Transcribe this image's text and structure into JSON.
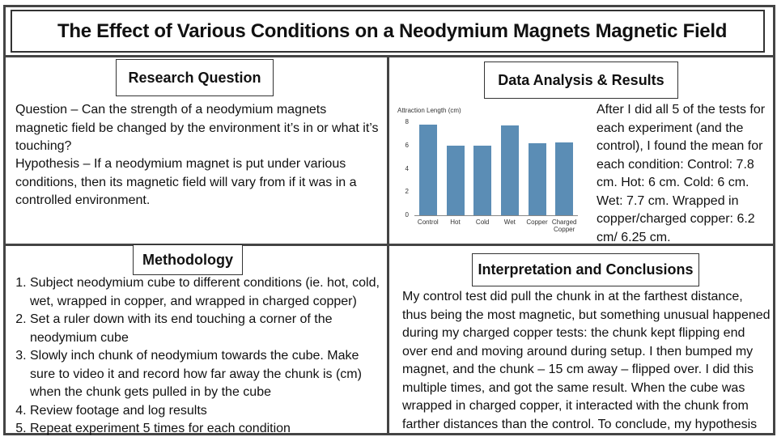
{
  "header": {
    "title": "The Effect of Various Conditions on a Neodymium Magnets Magnetic Field"
  },
  "research": {
    "heading": "Research Question",
    "question": "Question – Can the strength of a neodymium magnets magnetic field be changed by the environment it’s in or what it’s touching?",
    "hypothesis": "Hypothesis – If a neodymium magnet is put under various conditions, then its magnetic field will vary from if it was in a controlled environment."
  },
  "results": {
    "heading": "Data Analysis & Results",
    "text": "After I did all 5 of the tests for each experiment (and the control), I found the mean for each condition: Control: 7.8 cm. Hot: 6 cm. Cold: 6 cm. Wet: 7.7 cm. Wrapped in copper/charged copper: 6.2 cm/ 6.25 cm."
  },
  "chart_data": {
    "type": "bar",
    "y_label": "Attraction Length (cm)",
    "categories": [
      "Control",
      "Hot",
      "Cold",
      "Wet",
      "Copper",
      "Charged Copper"
    ],
    "values": [
      7.8,
      6,
      6,
      7.7,
      6.2,
      6.25
    ],
    "color": "#5b8db5",
    "ylim": [
      0,
      8.5
    ],
    "yticks": [
      0,
      2,
      4,
      6,
      8
    ],
    "grid": false
  },
  "methodology": {
    "heading": "Methodology",
    "steps": [
      "Subject neodymium cube to different conditions (ie. hot, cold, wet, wrapped in copper, and wrapped in charged copper)",
      "Set a ruler down with its end touching a corner of the neodymium cube",
      "Slowly inch chunk of neodymium towards the cube. Make sure to video it and record how far away the chunk is (cm) when the chunk gets pulled in by the cube",
      "Review footage and log results",
      "Repeat experiment 5 times for each condition"
    ]
  },
  "conclusions": {
    "heading": "Interpretation and Conclusions",
    "text": "My control test did pull the chunk in at the farthest distance, thus being the most magnetic, but something unusual happened during my charged copper tests: the chunk kept flipping end over end and moving around during setup. I then bumped my magnet, and the chunk – 15 cm away – flipped over. I did this multiple times, and got the same result. When the cube was wrapped in charged copper, it interacted with the chunk from farther distances than the control. To conclude, my hypothesis was correct."
  }
}
